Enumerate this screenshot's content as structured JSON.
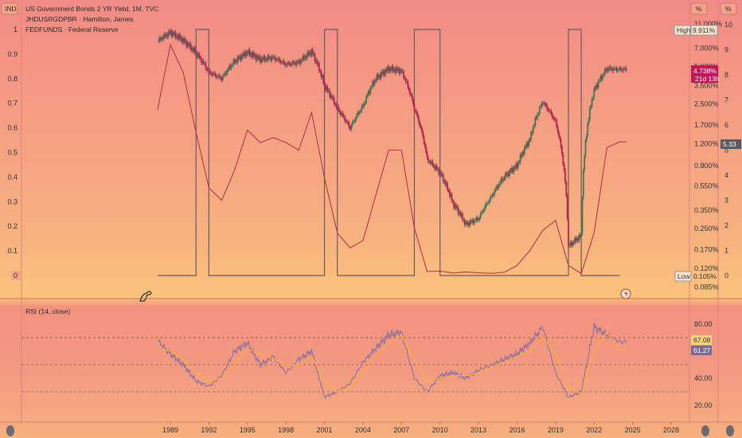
{
  "header": {
    "ind_badge": "IND",
    "pct_badge_1": "%",
    "pct_badge_2": "%",
    "series_1": "US Government Bonds 2 YR Yield, 1M, TVC",
    "series_2": "JHDUSRGDPBR · Hamilton, James",
    "series_3": "FEDFUNDS · Federal Reserve",
    "rsi_title": "RSI (14, close)"
  },
  "price_tags": {
    "high_label": "High",
    "high_value": "9.911%",
    "low_label": "Low",
    "low_value": "0.105%",
    "last_value": "4.738%",
    "countdown": "21d 13h",
    "fedfunds_value": "5.33",
    "rsi_value": "67.08",
    "rsi_ma_value": "61.27"
  },
  "colors": {
    "up_candle": "#3d7a55",
    "down_candle": "#b3244f",
    "recession_line": "#6b5a60",
    "fedfunds_line": "#b03a4e",
    "rsi_line": "#8a6f9e",
    "rsi_ma": "#f4b23a",
    "tag_red": "#c2185b",
    "tag_grey": "#5a5a66"
  },
  "chart_data": [
    {
      "type": "line",
      "title": "US Government Bonds 2 YR Yield, 1M, TVC",
      "y_scale": "log",
      "right_axis_ticks": [
        "11.000%",
        "9.911%",
        "7.000%",
        "5.000%",
        "3.500%",
        "2.500%",
        "1.700%",
        "1.200%",
        "0.800%",
        "0.550%",
        "0.350%",
        "0.250%",
        "0.170%",
        "0.120%",
        "0.105%",
        "0.085%"
      ],
      "left_axis_ticks": [
        "1",
        "0.9",
        "0.8",
        "0.7",
        "0.6",
        "0.5",
        "0.4",
        "0.3",
        "0.2",
        "0.1",
        "0"
      ],
      "far_right_axis_ticks": [
        "10",
        "9",
        "8",
        "7",
        "6",
        "5",
        "4",
        "3",
        "2",
        "1",
        "0"
      ],
      "x_ticks": [
        "1989",
        "1992",
        "1995",
        "1998",
        "2001",
        "2004",
        "2007",
        "2010",
        "2013",
        "2016",
        "2019",
        "2022",
        "2025",
        "2028"
      ],
      "series": [
        {
          "name": "US Government Bonds 2 YR Yield",
          "x": [
            1988,
            1989,
            1990,
            1991,
            1992,
            1993,
            1994,
            1995,
            1996,
            1997,
            1998,
            1999,
            2000,
            2001,
            2002,
            2003,
            2004,
            2005,
            2006,
            2007,
            2008,
            2009,
            2010,
            2011,
            2012,
            2013,
            2014,
            2015,
            2016,
            2017,
            2018,
            2019,
            2020,
            2021,
            2022,
            2023,
            2024
          ],
          "values": [
            8.0,
            9.4,
            8.1,
            6.4,
            4.5,
            4.0,
            5.5,
            6.5,
            5.7,
            5.9,
            5.2,
            5.4,
            6.6,
            3.5,
            2.3,
            1.6,
            2.4,
            4.0,
            4.8,
            4.6,
            2.3,
            0.9,
            0.7,
            0.4,
            0.27,
            0.3,
            0.45,
            0.65,
            0.8,
            1.3,
            2.6,
            1.8,
            0.18,
            0.22,
            3.2,
            4.8,
            4.74
          ]
        },
        {
          "name": "JHDUSRGDPBR",
          "x": [
            1988,
            1989,
            1990,
            1991,
            1992,
            1993,
            1994,
            1995,
            1996,
            1997,
            1998,
            1999,
            2000,
            2001,
            2002,
            2003,
            2004,
            2005,
            2006,
            2007,
            2008,
            2009,
            2010,
            2011,
            2012,
            2013,
            2014,
            2015,
            2016,
            2017,
            2018,
            2019,
            2020,
            2021,
            2022,
            2023,
            2024
          ],
          "values": [
            0,
            0,
            0,
            1,
            0,
            0,
            0,
            0,
            0,
            0,
            0,
            0,
            0,
            1,
            0,
            0,
            0,
            0,
            0,
            0,
            1,
            1,
            0,
            0,
            0,
            0,
            0,
            0,
            0,
            0,
            0,
            0,
            1,
            0,
            0,
            0,
            0
          ]
        },
        {
          "name": "FEDFUNDS",
          "x": [
            1988,
            1989,
            1990,
            1991,
            1992,
            1993,
            1994,
            1995,
            1996,
            1997,
            1998,
            1999,
            2000,
            2001,
            2002,
            2003,
            2004,
            2005,
            2006,
            2007,
            2008,
            2009,
            2010,
            2011,
            2012,
            2013,
            2014,
            2015,
            2016,
            2017,
            2018,
            2019,
            2020,
            2021,
            2022,
            2023,
            2024
          ],
          "values": [
            6.6,
            9.2,
            8.1,
            5.7,
            3.5,
            3.0,
            4.2,
            5.8,
            5.3,
            5.5,
            5.3,
            5.0,
            6.5,
            3.9,
            1.7,
            1.1,
            1.4,
            3.2,
            5.0,
            5.0,
            1.9,
            0.16,
            0.18,
            0.1,
            0.14,
            0.11,
            0.09,
            0.13,
            0.4,
            1.0,
            1.8,
            2.2,
            0.4,
            0.08,
            1.7,
            5.1,
            5.33
          ]
        }
      ]
    },
    {
      "type": "line",
      "title": "RSI (14, close)",
      "ylim": [
        20,
        80
      ],
      "y_ticks": [
        "80.00",
        "40.00",
        "20.00"
      ],
      "series": [
        {
          "name": "RSI",
          "x": [
            1988,
            1989,
            1990,
            1991,
            1992,
            1993,
            1994,
            1995,
            1996,
            1997,
            1998,
            1999,
            2000,
            2001,
            2002,
            2003,
            2004,
            2005,
            2006,
            2007,
            2008,
            2009,
            2010,
            2011,
            2012,
            2013,
            2014,
            2015,
            2016,
            2017,
            2018,
            2019,
            2020,
            2021,
            2022,
            2023,
            2024
          ],
          "values": [
            68,
            58,
            50,
            38,
            34,
            42,
            60,
            66,
            50,
            56,
            44,
            54,
            60,
            26,
            30,
            36,
            52,
            62,
            72,
            74,
            40,
            30,
            42,
            44,
            40,
            46,
            50,
            54,
            58,
            66,
            78,
            44,
            26,
            30,
            78,
            72,
            67
          ]
        },
        {
          "name": "MA",
          "x": [
            1988,
            1989,
            1990,
            1991,
            1992,
            1993,
            1994,
            1995,
            1996,
            1997,
            1998,
            1999,
            2000,
            2001,
            2002,
            2003,
            2004,
            2005,
            2006,
            2007,
            2008,
            2009,
            2010,
            2011,
            2012,
            2013,
            2014,
            2015,
            2016,
            2017,
            2018,
            2019,
            2020,
            2021,
            2022,
            2023,
            2024
          ],
          "values": [
            62,
            60,
            54,
            44,
            38,
            40,
            50,
            62,
            58,
            54,
            50,
            50,
            56,
            38,
            30,
            34,
            44,
            56,
            66,
            72,
            54,
            38,
            40,
            42,
            42,
            44,
            48,
            52,
            56,
            60,
            70,
            58,
            34,
            28,
            60,
            74,
            61
          ]
        }
      ]
    }
  ]
}
